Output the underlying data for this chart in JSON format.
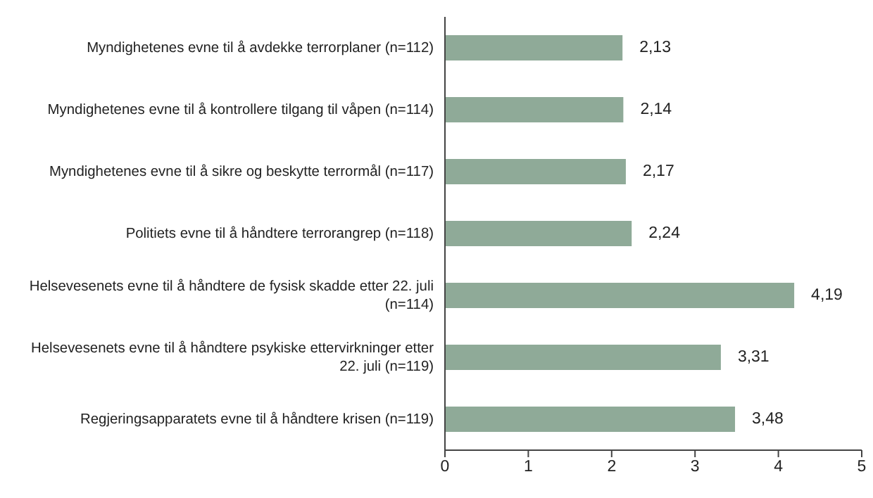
{
  "chart_data": {
    "type": "bar",
    "orientation": "horizontal",
    "categories": [
      "Myndighetenes evne til å avdekke terrorplaner (n=112)",
      "Myndighetenes evne til å kontrollere tilgang til våpen (n=114)",
      "Myndighetenes evne til å sikre og beskytte terrormål (n=117)",
      "Politiets evne til å håndtere terrorangrep (n=118)",
      "Helsevesenets evne til å håndtere de fysisk skadde etter 22. juli (n=114)",
      "Helsevesenets evne til å håndtere psykiske ettervirkninger etter 22. juli (n=119)",
      "Regjeringsapparatets evne til å håndtere krisen (n=119)"
    ],
    "values": [
      2.13,
      2.14,
      2.17,
      2.24,
      4.19,
      3.31,
      3.48
    ],
    "value_labels": [
      "2,13",
      "2,14",
      "2,17",
      "2,24",
      "4,19",
      "3,31",
      "3,48"
    ],
    "color": "#8faa98",
    "xlim": [
      0,
      5
    ],
    "xticks": [
      0,
      1,
      2,
      3,
      4,
      5
    ],
    "grid": false,
    "legend": false
  }
}
